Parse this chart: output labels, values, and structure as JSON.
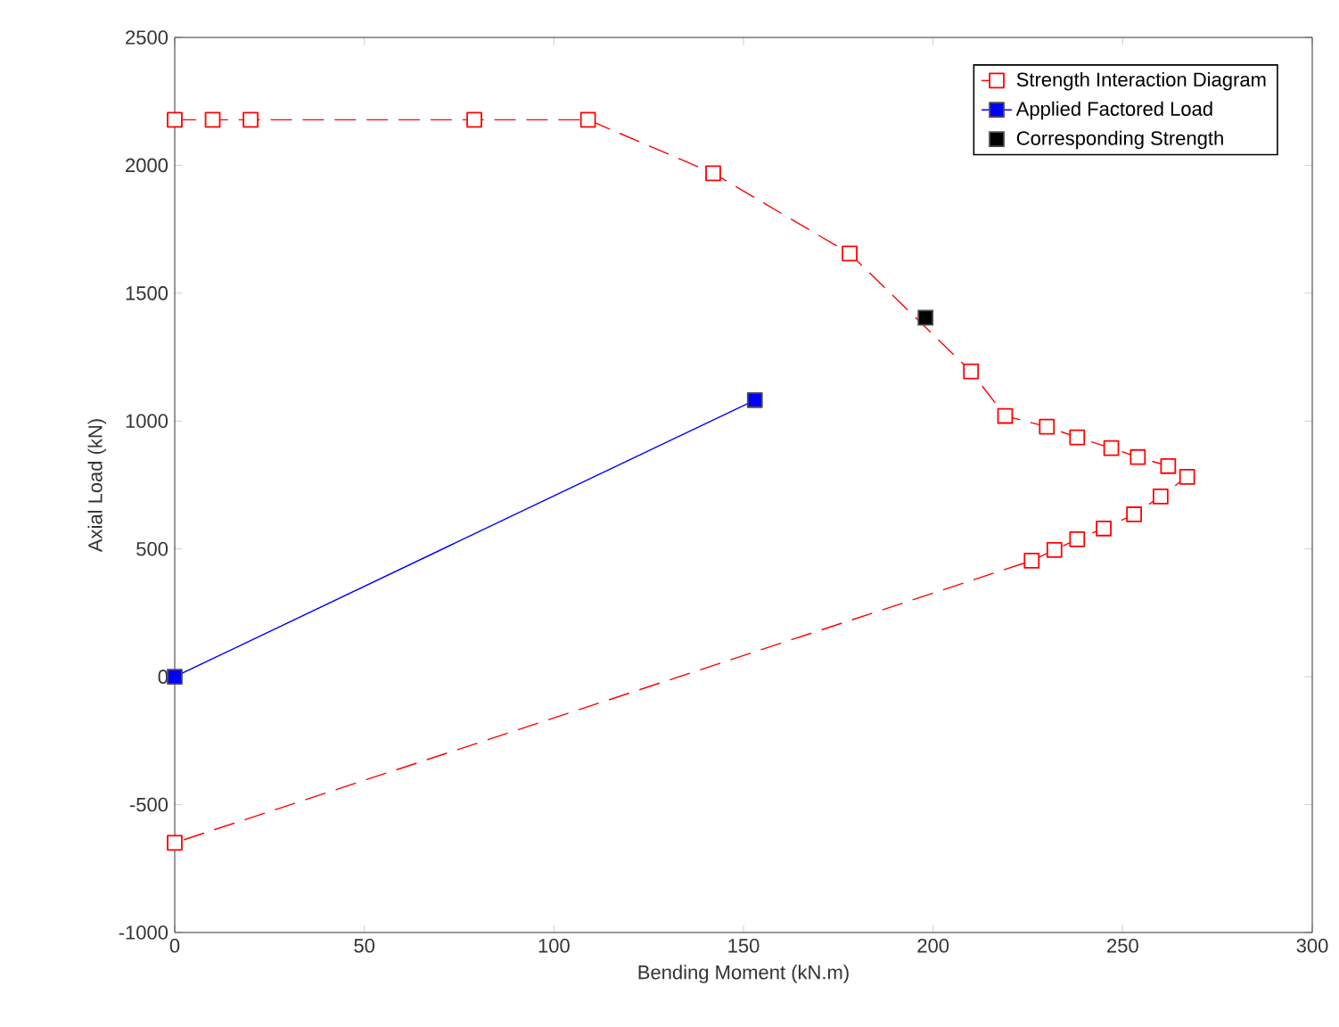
{
  "chart_data": {
    "type": "line",
    "xlabel": "Bending Moment (kN.m)",
    "ylabel": "Axial Load (kN)",
    "xlim": [
      0,
      300
    ],
    "ylim": [
      -1000,
      2500
    ],
    "xticks": [
      0,
      50,
      100,
      150,
      200,
      250,
      300
    ],
    "yticks": [
      -1000,
      -500,
      0,
      500,
      1000,
      1500,
      2000,
      2500
    ],
    "grid": false,
    "legend": "top right",
    "series": [
      {
        "name": "Strength Interaction Diagram",
        "color": "#ff0000",
        "line_style": "dashed",
        "marker": "square",
        "x": [
          0,
          10,
          20,
          79,
          109,
          142,
          178,
          210,
          219,
          230,
          238,
          247,
          254,
          262,
          267,
          260,
          253,
          245,
          238,
          232,
          226,
          0
        ],
        "values": [
          2178,
          2178,
          2178,
          2178,
          2178,
          1969,
          1655,
          1194,
          1020,
          978,
          936,
          894,
          859,
          824,
          782,
          705,
          635,
          580,
          538,
          496,
          454,
          -649
        ]
      },
      {
        "name": "Applied Factored Load",
        "color": "#0000ff",
        "line_style": "solid",
        "marker": "square",
        "x": [
          0,
          153
        ],
        "values": [
          0,
          1082
        ]
      },
      {
        "name": "Corresponding Strength",
        "color": "#000000",
        "type": "scatter",
        "marker": "square",
        "x": [
          198
        ],
        "values": [
          1404
        ]
      }
    ]
  }
}
